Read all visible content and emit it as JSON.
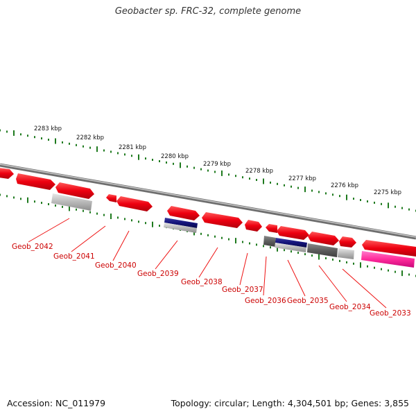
{
  "title": "Geobacter sp. FRC-32, complete genome",
  "footer": {
    "accession": "Accession: NC_011979",
    "summary": "Topology: circular; Length: 4,304,501 bp; Genes: 3,855"
  },
  "scale_labels": [
    "2283 kbp",
    "2282 kbp",
    "2281 kbp",
    "2280 kbp",
    "2279 kbp",
    "2278 kbp",
    "2277 kbp",
    "2276 kbp",
    "2275 kbp"
  ],
  "genes": [
    "Geob_2042",
    "Geob_2041",
    "Geob_2040",
    "Geob_2039",
    "Geob_2038",
    "Geob_2037",
    "Geob_2036",
    "Geob_2035",
    "Geob_2034",
    "Geob_2033"
  ],
  "colors": {
    "gene_arrow": "#e8001c",
    "label": "#cc0000",
    "backbone": "#888888",
    "tick": "#1e7a1e",
    "cog_gray": "#b8b8b8",
    "cog_dark": "#666666",
    "cog_navy": "#1a1a7a",
    "cog_pink": "#ff2a9a"
  }
}
